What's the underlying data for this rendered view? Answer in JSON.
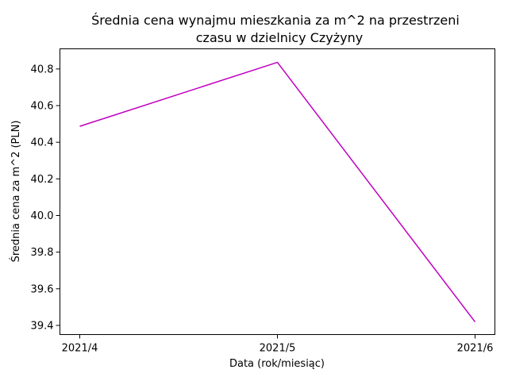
{
  "chart_data": {
    "type": "line",
    "title_lines": [
      "Średnia cena wynajmu mieszkania za m^2 na przestrzeni",
      "czasu w dzielnicy  Czyżyny"
    ],
    "xlabel": "Data (rok/miesiąc)",
    "ylabel": "Średnia cena za m^2 (PLN)",
    "categories": [
      "2021/4",
      "2021/5",
      "2021/6"
    ],
    "series": [
      {
        "name": "Czyżyny",
        "values": [
          40.487,
          40.836,
          39.419
        ],
        "color": "#c000c0"
      }
    ],
    "ylim": [
      39.35,
      40.91
    ],
    "yticks": [
      39.4,
      39.6,
      39.8,
      40.0,
      40.2,
      40.4,
      40.6,
      40.8
    ],
    "ytick_labels": [
      "39.4",
      "39.6",
      "39.8",
      "40.0",
      "40.2",
      "40.4",
      "40.6",
      "40.8"
    ],
    "grid": false
  }
}
